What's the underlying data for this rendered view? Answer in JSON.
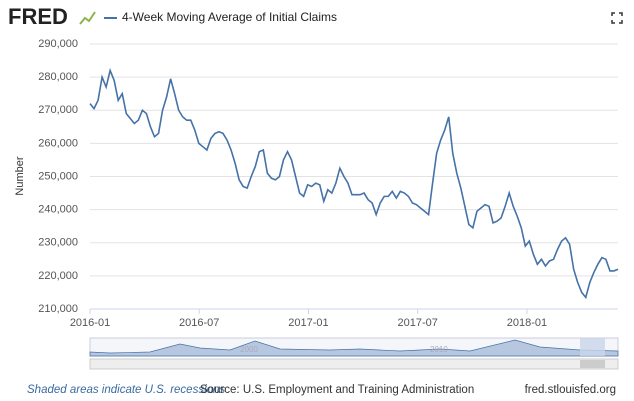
{
  "header": {
    "logo": "FRED"
  },
  "chart_data": {
    "type": "line",
    "ylabel": "Number",
    "xlim": [
      "2016-01",
      "2018-06"
    ],
    "xticks": [
      "2016-01",
      "2016-07",
      "2017-01",
      "2017-07",
      "2018-01"
    ],
    "ylim": [
      210000,
      290000
    ],
    "yticks": [
      {
        "value": 210000,
        "label": "210,000"
      },
      {
        "value": 220000,
        "label": "220,000"
      },
      {
        "value": 230000,
        "label": "230,000"
      },
      {
        "value": 240000,
        "label": "240,000"
      },
      {
        "value": 250000,
        "label": "250,000"
      },
      {
        "value": 260000,
        "label": "260,000"
      },
      {
        "value": 270000,
        "label": "270,000"
      },
      {
        "value": 280000,
        "label": "280,000"
      },
      {
        "value": 290000,
        "label": "290,000"
      }
    ],
    "grid": true,
    "series": [
      {
        "name": "4-Week Moving Average of Initial Claims",
        "color": "#4572a7",
        "values": [
          272000,
          270500,
          273000,
          280000,
          277000,
          282000,
          279000,
          273000,
          275000,
          269000,
          267500,
          266000,
          267000,
          270000,
          269000,
          265000,
          262000,
          263000,
          270000,
          274000,
          279500,
          275000,
          270000,
          268000,
          267000,
          267000,
          264000,
          260000,
          259000,
          258000,
          261500,
          263000,
          263500,
          263000,
          261000,
          258000,
          254000,
          249000,
          247000,
          246500,
          250000,
          253000,
          257500,
          258000,
          251000,
          249500,
          249000,
          250000,
          255000,
          257500,
          255000,
          250000,
          245000,
          244000,
          247500,
          247000,
          248000,
          247500,
          242500,
          246000,
          245000,
          248000,
          252500,
          250000,
          248000,
          244500,
          244500,
          244500,
          245000,
          243000,
          242000,
          238500,
          242000,
          244000,
          244000,
          245500,
          243500,
          245500,
          245000,
          244000,
          242000,
          241500,
          240500,
          239500,
          238500,
          248000,
          257000,
          261000,
          264000,
          268000,
          257000,
          251000,
          246500,
          241000,
          235500,
          234500,
          239500,
          240500,
          241500,
          241000,
          236000,
          236500,
          237500,
          241000,
          245000,
          241000,
          238000,
          234500,
          229000,
          230500,
          226500,
          223500,
          225000,
          223000,
          224500,
          225000,
          228000,
          230500,
          231500,
          229500,
          222000,
          218000,
          215000,
          213500,
          218000,
          221000,
          223500,
          225500,
          225000,
          221500,
          221500,
          222000
        ]
      }
    ]
  },
  "navigator": {
    "labels": [
      "2000",
      "2010"
    ]
  },
  "footer": {
    "note": "Shaded areas indicate U.S. recessions",
    "source": "Source: U.S. Employment and Training Administration",
    "site": "fred.stlouisfed.org"
  }
}
